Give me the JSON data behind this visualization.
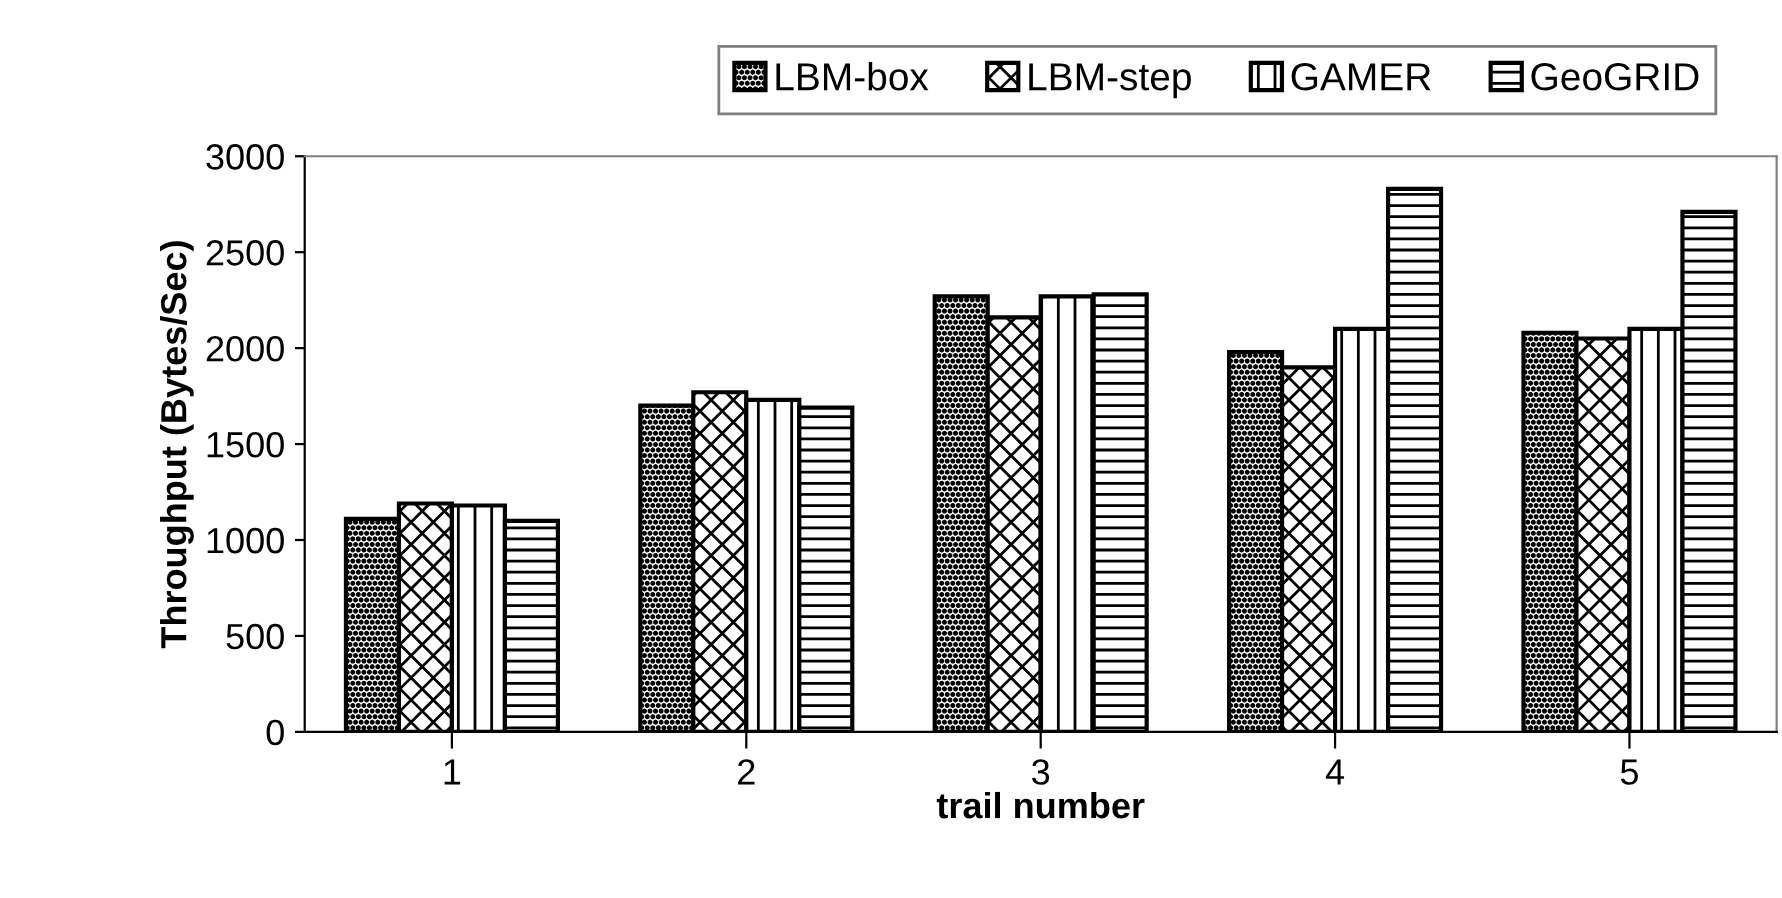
{
  "chart_data": {
    "type": "bar",
    "xlabel": "trail number",
    "ylabel": "Throughput (Bytes/Sec)",
    "categories": [
      "1",
      "2",
      "3",
      "4",
      "5"
    ],
    "series": [
      {
        "name": "LBM-box",
        "color": "#000000",
        "values": [
          1110,
          1700,
          2270,
          1980,
          2080
        ]
      },
      {
        "name": "LBM-step",
        "color": "#000000",
        "values": [
          1190,
          1770,
          2160,
          1900,
          2050
        ]
      },
      {
        "name": "GAMER",
        "color": "#000000",
        "values": [
          1180,
          1730,
          2270,
          2100,
          2100
        ]
      },
      {
        "name": "GeoGRID",
        "color": "#000000",
        "values": [
          1100,
          1690,
          2280,
          2830,
          2710
        ]
      }
    ],
    "ylim": [
      0,
      3000
    ],
    "yticks": [
      0,
      500,
      1000,
      1500,
      2000,
      2500,
      3000
    ],
    "grid": false,
    "legend": "top"
  }
}
